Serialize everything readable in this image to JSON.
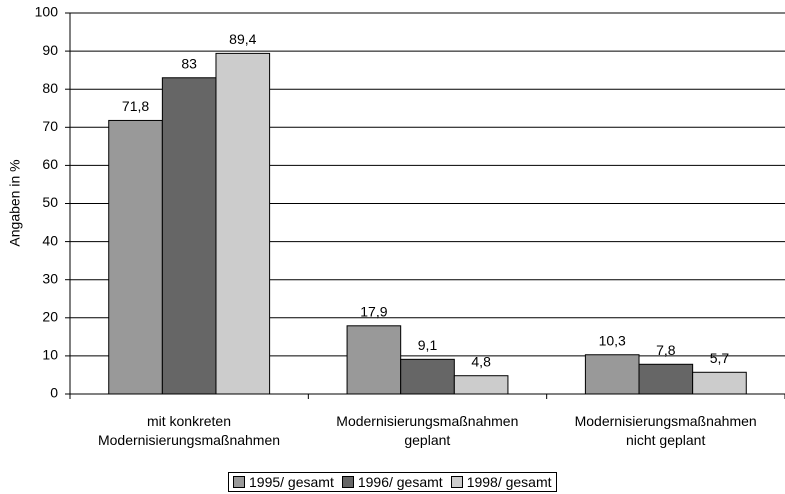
{
  "chart_data": {
    "type": "bar",
    "y_label": "Angaben in %",
    "categories": [
      "mit konkreten\nModernisierungsmaßnahmen",
      "Modernisierungsmaßnahmen\ngeplant",
      "Modernisierungsmaßnahmen\nnicht geplant"
    ],
    "series": [
      {
        "name": "1995/ gesamt",
        "color": "#999999",
        "values": [
          71.8,
          17.9,
          10.3
        ],
        "value_labels": [
          "71,8",
          "17,9",
          "10,3"
        ]
      },
      {
        "name": "1996/ gesamt",
        "color": "#666666",
        "values": [
          83,
          9.1,
          7.8
        ],
        "value_labels": [
          "83",
          "9,1",
          "7,8"
        ]
      },
      {
        "name": "1998/ gesamt",
        "color": "#cccccc",
        "values": [
          89.4,
          4.8,
          5.7
        ],
        "value_labels": [
          "89,4",
          "4,8",
          "5,7"
        ]
      }
    ],
    "ylim": [
      0,
      100
    ],
    "yticks": [
      0,
      10,
      20,
      30,
      40,
      50,
      60,
      70,
      80,
      90,
      100
    ],
    "grid": true,
    "legend": "bottom"
  }
}
